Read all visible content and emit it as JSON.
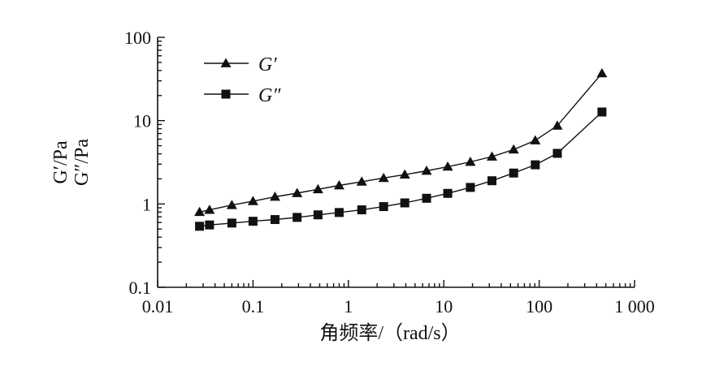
{
  "chart_data": {
    "type": "line",
    "x_scale": "log",
    "y_scale": "log",
    "xlabel": "角频率/（rad/s）",
    "ylabel_lines": [
      "G′/Pa",
      "G″/Pa"
    ],
    "xlim": [
      0.01,
      1000
    ],
    "ylim": [
      0.1,
      100
    ],
    "x_ticks": [
      {
        "value": 0.01,
        "label": "0.01"
      },
      {
        "value": 0.1,
        "label": "0.1"
      },
      {
        "value": 1,
        "label": "1"
      },
      {
        "value": 10,
        "label": "10"
      },
      {
        "value": 100,
        "label": "100"
      },
      {
        "value": 1000,
        "label": "1 000"
      }
    ],
    "y_ticks": [
      {
        "value": 0.1,
        "label": "0.1"
      },
      {
        "value": 1,
        "label": "1"
      },
      {
        "value": 10,
        "label": "10"
      },
      {
        "value": 100,
        "label": "100"
      }
    ],
    "grid": false,
    "legend_position": "top-left",
    "series": [
      {
        "name": "G′",
        "marker": "triangle",
        "color": "#111111",
        "x": [
          0.0275,
          0.035,
          0.06,
          0.1,
          0.17,
          0.29,
          0.48,
          0.8,
          1.38,
          2.34,
          3.9,
          6.6,
          11,
          19,
          32,
          54,
          91,
          155,
          455
        ],
        "y": [
          0.8,
          0.85,
          0.97,
          1.08,
          1.22,
          1.35,
          1.5,
          1.67,
          1.85,
          2.05,
          2.25,
          2.5,
          2.8,
          3.2,
          3.7,
          4.5,
          5.8,
          8.7,
          37
        ]
      },
      {
        "name": "G″",
        "marker": "square",
        "color": "#111111",
        "x": [
          0.0275,
          0.035,
          0.06,
          0.1,
          0.17,
          0.29,
          0.48,
          0.8,
          1.38,
          2.34,
          3.9,
          6.6,
          11,
          19,
          32,
          54,
          91,
          155,
          455
        ],
        "y": [
          0.54,
          0.56,
          0.59,
          0.62,
          0.65,
          0.69,
          0.74,
          0.79,
          0.85,
          0.93,
          1.03,
          1.17,
          1.34,
          1.58,
          1.9,
          2.35,
          2.95,
          4.05,
          12.7
        ]
      }
    ]
  }
}
